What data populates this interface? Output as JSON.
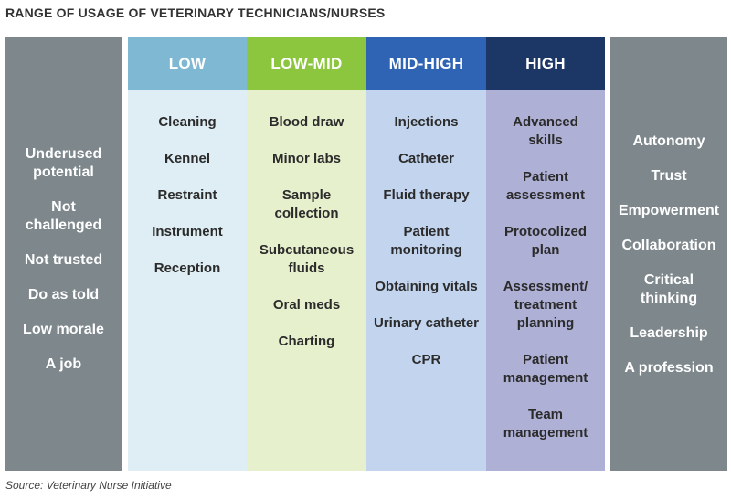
{
  "title": "RANGE OF USAGE OF VETERINARY TECHNICIANS/NURSES",
  "left_panel": [
    "Underused\npotential",
    "Not\nchallenged",
    "Not trusted",
    "Do as told",
    "Low morale",
    "A job"
  ],
  "right_panel": [
    "Autonomy",
    "Trust",
    "Empowerment",
    "Collaboration",
    "Critical\nthinking",
    "Leadership",
    "A profession"
  ],
  "columns": [
    {
      "header": "LOW",
      "header_color": "#7fb8d2",
      "body_color": "#deeef4",
      "items": [
        "Cleaning",
        "Kennel",
        "Restraint",
        "Instrument",
        "Reception"
      ]
    },
    {
      "header": "LOW-MID",
      "header_color": "#8cc63f",
      "body_color": "#e6f0cc",
      "items": [
        "Blood draw",
        "Minor labs",
        "Sample\ncollection",
        "Subcutaneous\nfluids",
        "Oral meds",
        "Charting"
      ]
    },
    {
      "header": "MID-HIGH",
      "header_color": "#2f63b4",
      "body_color": "#c2d4ee",
      "items": [
        "Injections",
        "Catheter",
        "Fluid therapy",
        "Patient\nmonitoring",
        "Obtaining vitals",
        "Urinary catheter",
        "CPR"
      ]
    },
    {
      "header": "HIGH",
      "header_color": "#1c3766",
      "body_color": "#aeb0d6",
      "items": [
        "Advanced\nskills",
        "Patient\nassessment",
        "Protocolized\nplan",
        "Assessment/\ntreatment\nplanning",
        "Patient\nmanagement",
        "Team\nmanagement"
      ]
    }
  ],
  "source": "Source: Veterinary Nurse Initiative"
}
